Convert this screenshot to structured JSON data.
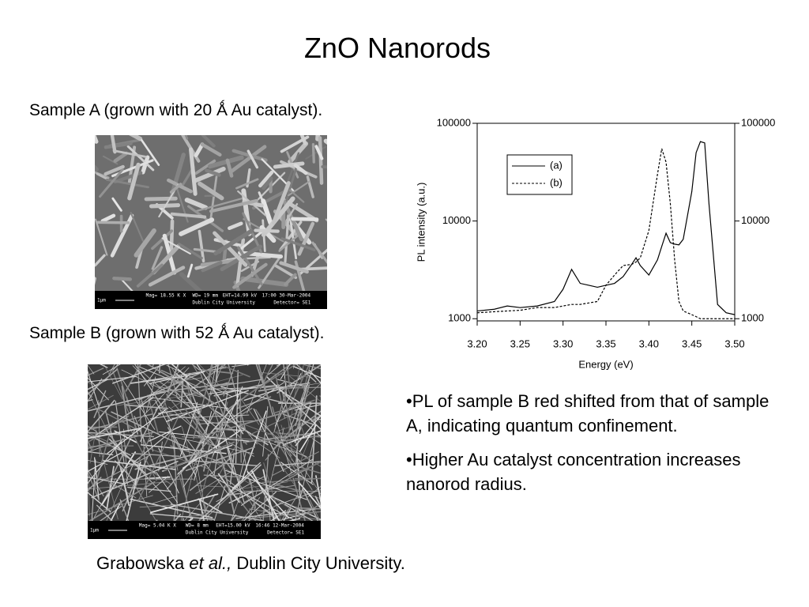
{
  "title": "ZnO Nanorods",
  "sample_a": {
    "caption": "Sample A (grown with 20 Ǻ Au catalyst).",
    "scale": "1μm",
    "info": [
      "Mag= 18.55 K X",
      "WD= 19 mm",
      "EHT=14.99 kV",
      "17:00 30-Mar-2004",
      "Dublin City University",
      "Detector= SE1"
    ]
  },
  "sample_b": {
    "caption": "Sample B (grown with 52 Ǻ Au catalyst).",
    "scale": "1μm",
    "info": [
      "Mag= 5.04 K X",
      "WD= 8 mm",
      "EHT=15.00 kV",
      "16:46 12-Mar-2004",
      "Dublin City University",
      "Detector= SE1"
    ]
  },
  "chart_data": {
    "type": "line",
    "xlabel": "Energy (eV)",
    "ylabel": "PL intensity (a.u.)",
    "log_y": true,
    "legend": "upper left",
    "xlim": [
      3.2,
      3.5
    ],
    "xticks": [
      {
        "value": 3.2,
        "label": "3.20"
      },
      {
        "value": 3.25,
        "label": "3.25"
      },
      {
        "value": 3.3,
        "label": "3.30"
      },
      {
        "value": 3.35,
        "label": "3.35"
      },
      {
        "value": 3.4,
        "label": "3.40"
      },
      {
        "value": 3.45,
        "label": "3.45"
      },
      {
        "value": 3.5,
        "label": "3.50"
      }
    ],
    "ylim": [
      950,
      100000
    ],
    "yticks": [
      1000,
      10000,
      100000
    ],
    "y2lim": [
      950,
      100000
    ],
    "y2ticks": [
      1000,
      10000,
      100000
    ],
    "x": [
      3.2,
      3.22,
      3.235,
      3.25,
      3.27,
      3.29,
      3.3,
      3.31,
      3.32,
      3.33,
      3.34,
      3.35,
      3.36,
      3.37,
      3.38,
      3.385,
      3.39,
      3.4,
      3.41,
      3.415,
      3.42,
      3.425,
      3.43,
      3.435,
      3.44,
      3.45,
      3.455,
      3.46,
      3.465,
      3.47,
      3.48,
      3.49,
      3.5
    ],
    "series": [
      {
        "name": "(a)",
        "color": "#000000",
        "dashed": false,
        "values": [
          1200,
          1250,
          1350,
          1300,
          1350,
          1500,
          2000,
          3200,
          2300,
          2200,
          2100,
          2200,
          2300,
          2700,
          3600,
          4200,
          3500,
          2800,
          4000,
          5500,
          7500,
          6000,
          5800,
          5700,
          6500,
          20000,
          50000,
          65000,
          63000,
          15000,
          1400,
          1150,
          1100
        ]
      },
      {
        "name": "(b)",
        "color": "#000000",
        "dashed": true,
        "values": [
          1150,
          1180,
          1200,
          1220,
          1300,
          1300,
          1350,
          1400,
          1400,
          1450,
          1500,
          2200,
          2800,
          3500,
          3600,
          3800,
          4200,
          8000,
          30000,
          55000,
          40000,
          15000,
          4000,
          1500,
          1200,
          1100,
          1050,
          1000,
          1000,
          1000,
          1000,
          1000,
          1000
        ]
      }
    ]
  },
  "bullets": [
    "•PL of sample B red shifted from that of sample A, indicating quantum confinement.",
    "•Higher Au catalyst concentration increases nanorod radius."
  ],
  "citation": {
    "author": "Grabowska ",
    "etal": "et al.,",
    "affiliation": " Dublin City University."
  }
}
